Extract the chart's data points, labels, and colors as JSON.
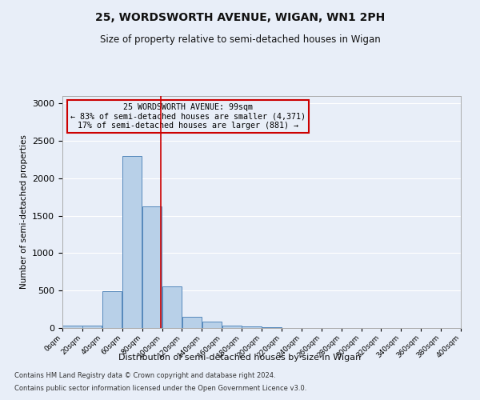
{
  "title": "25, WORDSWORTH AVENUE, WIGAN, WN1 2PH",
  "subtitle": "Size of property relative to semi-detached houses in Wigan",
  "xlabel": "Distribution of semi-detached houses by size in Wigan",
  "ylabel": "Number of semi-detached properties",
  "bins": [
    0,
    20,
    40,
    60,
    80,
    100,
    120,
    140,
    160,
    180,
    200,
    220,
    240,
    260,
    280,
    300,
    320,
    340,
    360,
    380,
    400
  ],
  "counts": [
    30,
    30,
    490,
    2300,
    1620,
    560,
    155,
    90,
    35,
    25,
    10,
    5,
    5,
    3,
    2,
    2,
    1,
    1,
    0,
    0
  ],
  "bar_color": "#b8d0e8",
  "bar_edge_color": "#5588bb",
  "property_size": 99,
  "annotation_title": "25 WORDSWORTH AVENUE: 99sqm",
  "annotation_line1": "← 83% of semi-detached houses are smaller (4,371)",
  "annotation_line2": "17% of semi-detached houses are larger (881) →",
  "annotation_box_color": "#cc0000",
  "vline_color": "#cc0000",
  "ylim": [
    0,
    3100
  ],
  "yticks": [
    0,
    500,
    1000,
    1500,
    2000,
    2500,
    3000
  ],
  "footnote1": "Contains HM Land Registry data © Crown copyright and database right 2024.",
  "footnote2": "Contains public sector information licensed under the Open Government Licence v3.0.",
  "bg_color": "#e8eef8",
  "grid_color": "#ffffff"
}
